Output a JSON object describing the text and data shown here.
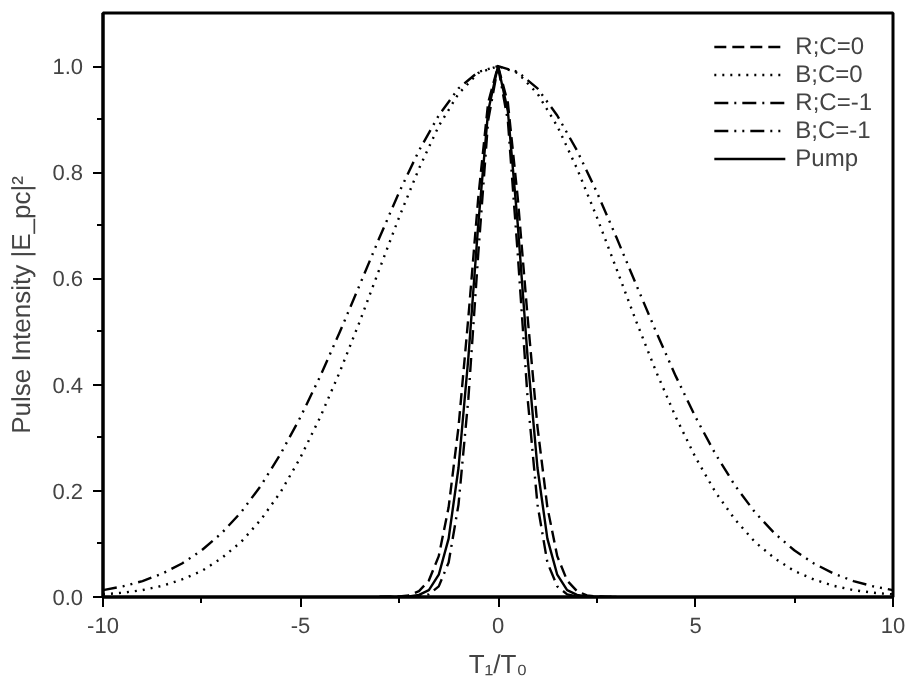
{
  "chart_data": {
    "type": "line",
    "xlabel": "T₁/T₀",
    "ylabel": "Pulse Intensity |E_pc|²",
    "xlim": [
      -10,
      10
    ],
    "ylim": [
      0,
      1.1
    ],
    "xticks": [
      -10,
      -5,
      0,
      5,
      10
    ],
    "yticks": [
      {
        "value": 0,
        "label": "0.0"
      },
      0.2,
      0.4,
      0.6,
      0.8,
      {
        "value": 1,
        "label": "1.0"
      }
    ],
    "legend": "top right",
    "grid": false,
    "marker": "none",
    "series": [
      {
        "name": "R;C=0",
        "color": "#000000",
        "line_style": "dashed",
        "x": [
          -3,
          -2.5,
          -2.25,
          -2,
          -1.75,
          -1.5,
          -1.25,
          -1,
          -0.75,
          -0.5,
          -0.25,
          0,
          0.25,
          0.5,
          0.75,
          1,
          1.25,
          1.5,
          1.75,
          2,
          2.25,
          2.5,
          3
        ],
        "values": [
          0,
          0.001,
          0.003,
          0.011,
          0.031,
          0.077,
          0.169,
          0.32,
          0.527,
          0.752,
          0.931,
          1,
          0.931,
          0.752,
          0.527,
          0.32,
          0.169,
          0.077,
          0.031,
          0.011,
          0.003,
          0.001,
          0
        ]
      },
      {
        "name": "B;C=0",
        "color": "#000000",
        "line_style": "dotted",
        "x": [
          -10,
          -9.5,
          -9,
          -8.5,
          -8,
          -7.5,
          -7,
          -6.5,
          -6,
          -5.5,
          -5,
          -4.5,
          -4,
          -3.5,
          -3,
          -2.5,
          -2,
          -1.5,
          -1,
          -0.5,
          0,
          0.5,
          1,
          1.5,
          2,
          2.5,
          3,
          3.5,
          4,
          4.5,
          5,
          5.5,
          6,
          6.5,
          7,
          7.5,
          8,
          8.5,
          9,
          9.5,
          10
        ],
        "values": [
          0.005,
          0.008,
          0.013,
          0.021,
          0.033,
          0.049,
          0.073,
          0.104,
          0.146,
          0.198,
          0.263,
          0.339,
          0.425,
          0.519,
          0.618,
          0.716,
          0.807,
          0.887,
          0.948,
          0.987,
          1,
          0.987,
          0.948,
          0.887,
          0.807,
          0.716,
          0.618,
          0.519,
          0.425,
          0.339,
          0.263,
          0.198,
          0.146,
          0.104,
          0.073,
          0.049,
          0.033,
          0.021,
          0.013,
          0.008,
          0.005
        ]
      },
      {
        "name": "R;C=-1",
        "color": "#000000",
        "line_style": "dashdot",
        "x": [
          -3,
          -2.25,
          -2,
          -1.75,
          -1.5,
          -1.25,
          -1,
          -0.75,
          -0.5,
          -0.25,
          0,
          0.25,
          0.5,
          0.75,
          1,
          1.25,
          1.5,
          1.75,
          2,
          2.25,
          3
        ],
        "values": [
          0,
          0,
          0.001,
          0.005,
          0.02,
          0.065,
          0.174,
          0.374,
          0.646,
          0.897,
          1,
          0.897,
          0.646,
          0.374,
          0.174,
          0.065,
          0.02,
          0.005,
          0.001,
          0,
          0
        ]
      },
      {
        "name": "B;C=-1",
        "color": "#000000",
        "line_style": "dashdotdot",
        "x": [
          -10,
          -9.5,
          -9,
          -8.5,
          -8,
          -7.5,
          -7,
          -6.5,
          -6,
          -5.5,
          -5,
          -4.5,
          -4,
          -3.5,
          -3,
          -2.5,
          -2,
          -1.5,
          -1,
          -0.5,
          0,
          0.5,
          1,
          1.5,
          2,
          2.5,
          3,
          3.5,
          4,
          4.5,
          5,
          5.5,
          6,
          6.5,
          7,
          7.5,
          8,
          8.5,
          9,
          9.5,
          10
        ],
        "values": [
          0.013,
          0.02,
          0.03,
          0.044,
          0.063,
          0.088,
          0.12,
          0.16,
          0.21,
          0.27,
          0.339,
          0.416,
          0.5,
          0.588,
          0.677,
          0.763,
          0.841,
          0.907,
          0.958,
          0.989,
          1,
          0.989,
          0.958,
          0.907,
          0.841,
          0.763,
          0.677,
          0.588,
          0.5,
          0.416,
          0.339,
          0.27,
          0.21,
          0.16,
          0.12,
          0.088,
          0.063,
          0.044,
          0.03,
          0.02,
          0.013
        ]
      },
      {
        "name": "Pump",
        "color": "#000000",
        "line_style": "solid",
        "x": [
          -3,
          -2.5,
          -2.25,
          -2,
          -1.75,
          -1.5,
          -1.25,
          -1,
          -0.75,
          -0.5,
          -0.25,
          0,
          0.25,
          0.5,
          0.75,
          1,
          1.25,
          1.5,
          1.75,
          2,
          2.25,
          2.5,
          3
        ],
        "values": [
          0,
          0,
          0.001,
          0.004,
          0.013,
          0.042,
          0.11,
          0.243,
          0.451,
          0.702,
          0.915,
          1,
          0.915,
          0.702,
          0.451,
          0.243,
          0.11,
          0.042,
          0.013,
          0.004,
          0.001,
          0,
          0
        ]
      }
    ]
  }
}
